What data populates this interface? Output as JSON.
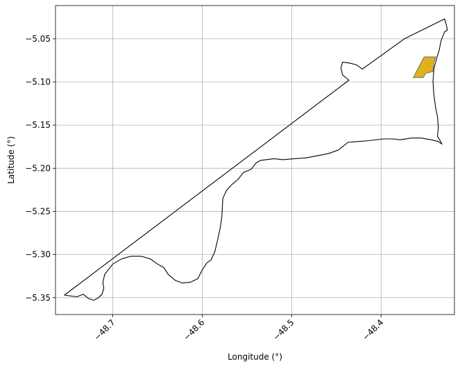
{
  "chart_data": {
    "type": "map",
    "title": "",
    "xlabel": "Longitude (°)",
    "ylabel": "Latitude (°)",
    "xlim": [
      -48.764,
      -48.318
    ],
    "ylim": [
      -5.3695,
      -5.0115
    ],
    "grid": true,
    "x_ticks": [
      -48.7,
      -48.6,
      -48.5,
      -48.4
    ],
    "x_tick_labels": [
      "−48.7",
      "−48.6",
      "−48.5",
      "−48.4"
    ],
    "x_tick_rotation": 45,
    "y_ticks": [
      -5.05,
      -5.1,
      -5.15,
      -5.2,
      -5.25,
      -5.3,
      -5.35
    ],
    "y_tick_labels": [
      "−5.05",
      "−5.10",
      "−5.15",
      "−5.20",
      "−5.25",
      "−5.30",
      "−5.35"
    ],
    "boundary": {
      "edge_color": "#000000",
      "coords": [
        [
          -48.754,
          -5.347
        ],
        [
          -48.74,
          -5.349
        ],
        [
          -48.733,
          -5.346
        ],
        [
          -48.727,
          -5.351
        ],
        [
          -48.721,
          -5.353
        ],
        [
          -48.716,
          -5.35
        ],
        [
          -48.712,
          -5.346
        ],
        [
          -48.71,
          -5.339
        ],
        [
          -48.711,
          -5.332
        ],
        [
          -48.709,
          -5.323
        ],
        [
          -48.7,
          -5.311
        ],
        [
          -48.69,
          -5.305
        ],
        [
          -48.68,
          -5.302
        ],
        [
          -48.668,
          -5.302
        ],
        [
          -48.658,
          -5.305
        ],
        [
          -48.65,
          -5.311
        ],
        [
          -48.643,
          -5.315
        ],
        [
          -48.638,
          -5.323
        ],
        [
          -48.63,
          -5.33
        ],
        [
          -48.622,
          -5.333
        ],
        [
          -48.613,
          -5.332
        ],
        [
          -48.605,
          -5.328
        ],
        [
          -48.6,
          -5.318
        ],
        [
          -48.595,
          -5.31
        ],
        [
          -48.59,
          -5.306
        ],
        [
          -48.586,
          -5.297
        ],
        [
          -48.583,
          -5.284
        ],
        [
          -48.58,
          -5.27
        ],
        [
          -48.578,
          -5.256
        ],
        [
          -48.577,
          -5.235
        ],
        [
          -48.573,
          -5.226
        ],
        [
          -48.567,
          -5.219
        ],
        [
          -48.56,
          -5.213
        ],
        [
          -48.554,
          -5.205
        ],
        [
          -48.545,
          -5.201
        ],
        [
          -48.54,
          -5.194
        ],
        [
          -48.535,
          -5.191
        ],
        [
          -48.52,
          -5.189
        ],
        [
          -48.51,
          -5.19
        ],
        [
          -48.497,
          -5.189
        ],
        [
          -48.484,
          -5.188
        ],
        [
          -48.474,
          -5.186
        ],
        [
          -48.459,
          -5.183
        ],
        [
          -48.448,
          -5.179
        ],
        [
          -48.443,
          -5.175
        ],
        [
          -48.437,
          -5.17
        ],
        [
          -48.426,
          -5.169
        ],
        [
          -48.413,
          -5.168
        ],
        [
          -48.397,
          -5.166
        ],
        [
          -48.387,
          -5.166
        ],
        [
          -48.379,
          -5.167
        ],
        [
          -48.366,
          -5.165
        ],
        [
          -48.355,
          -5.165
        ],
        [
          -48.344,
          -5.167
        ],
        [
          -48.336,
          -5.169
        ],
        [
          -48.332,
          -5.172
        ],
        [
          -48.334,
          -5.168
        ],
        [
          -48.337,
          -5.163
        ],
        [
          -48.336,
          -5.153
        ],
        [
          -48.337,
          -5.14
        ],
        [
          -48.339,
          -5.13
        ],
        [
          -48.341,
          -5.115
        ],
        [
          -48.342,
          -5.1
        ],
        [
          -48.341,
          -5.085
        ],
        [
          -48.338,
          -5.073
        ],
        [
          -48.335,
          -5.063
        ],
        [
          -48.333,
          -5.052
        ],
        [
          -48.329,
          -5.042
        ],
        [
          -48.326,
          -5.04
        ],
        [
          -48.327,
          -5.034
        ],
        [
          -48.329,
          -5.027
        ],
        [
          -48.374,
          -5.05
        ],
        [
          -48.414,
          -5.08
        ],
        [
          -48.421,
          -5.085
        ],
        [
          -48.428,
          -5.08
        ],
        [
          -48.436,
          -5.078
        ],
        [
          -48.443,
          -5.077
        ],
        [
          -48.445,
          -5.084
        ],
        [
          -48.443,
          -5.092
        ],
        [
          -48.436,
          -5.098
        ],
        [
          -48.754,
          -5.347
        ]
      ]
    },
    "highlighted_area": {
      "fill_color": "#dfb21c",
      "edge_color": "#666666",
      "coords": [
        [
          -48.352,
          -5.071
        ],
        [
          -48.339,
          -5.071
        ],
        [
          -48.341,
          -5.078
        ],
        [
          -48.342,
          -5.088
        ],
        [
          -48.35,
          -5.09
        ],
        [
          -48.353,
          -5.095
        ],
        [
          -48.364,
          -5.095
        ],
        [
          -48.352,
          -5.071
        ]
      ]
    }
  }
}
